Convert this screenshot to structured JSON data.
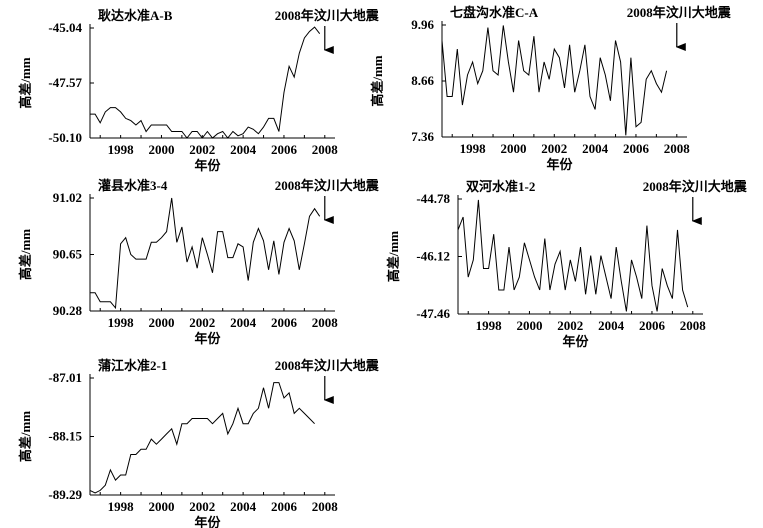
{
  "event_label": "2008年汶川大地震",
  "xlabel": "年份",
  "ylabel": "高差/mm",
  "chart_data": [
    {
      "type": "line",
      "title": "耿达水准A-B",
      "xlabel": "年份",
      "ylabel": "高差/mm",
      "xlim": [
        1996.5,
        2008.5
      ],
      "ylim": [
        -50.1,
        -45.04
      ],
      "yticks": [
        -45.04,
        -47.57,
        -50.1
      ],
      "ytick_labels": [
        "-45.04",
        "-47.57",
        "-50.10"
      ],
      "xticks": [
        1998,
        2000,
        2002,
        2004,
        2006,
        2008
      ],
      "event_year": 2008.0,
      "x": [
        1996.5,
        1996.75,
        1997.0,
        1997.25,
        1997.5,
        1997.75,
        1998.0,
        1998.25,
        1998.5,
        1998.75,
        1999.0,
        1999.25,
        1999.5,
        1999.75,
        2000.0,
        2000.25,
        2000.5,
        2000.75,
        2001.0,
        2001.25,
        2001.5,
        2001.75,
        2002.0,
        2002.25,
        2002.5,
        2002.75,
        2003.0,
        2003.25,
        2003.5,
        2003.75,
        2004.0,
        2004.25,
        2004.5,
        2004.75,
        2005.0,
        2005.25,
        2005.5,
        2005.75,
        2006.0,
        2006.25,
        2006.5,
        2006.75,
        2007.0,
        2007.25,
        2007.5,
        2007.75
      ],
      "y": [
        -49.0,
        -49.0,
        -49.4,
        -48.9,
        -48.7,
        -48.7,
        -48.9,
        -49.2,
        -49.3,
        -49.5,
        -49.3,
        -49.8,
        -49.5,
        -49.5,
        -49.5,
        -49.5,
        -49.8,
        -49.8,
        -49.8,
        -50.1,
        -49.8,
        -49.8,
        -50.1,
        -49.8,
        -50.1,
        -49.9,
        -49.8,
        -50.1,
        -49.8,
        -50.0,
        -49.9,
        -49.6,
        -49.7,
        -49.9,
        -49.6,
        -49.2,
        -49.2,
        -49.8,
        -48.0,
        -46.8,
        -47.3,
        -46.2,
        -45.5,
        -45.2,
        -45.0,
        -45.3
      ]
    },
    {
      "type": "line",
      "title": "七盘沟水准C-A",
      "xlabel": "年份",
      "ylabel": "高差/mm",
      "xlim": [
        1996.5,
        2008.5
      ],
      "ylim": [
        7.36,
        9.96
      ],
      "yticks": [
        9.96,
        8.66,
        7.36
      ],
      "ytick_labels": [
        "9.96",
        "8.66",
        "7.36"
      ],
      "xticks": [
        1998,
        2000,
        2002,
        2004,
        2006,
        2008
      ],
      "event_year": 2008.0,
      "x": [
        1996.5,
        1996.75,
        1997.0,
        1997.25,
        1997.5,
        1997.75,
        1998.0,
        1998.25,
        1998.5,
        1998.75,
        1999.0,
        1999.25,
        1999.5,
        1999.75,
        2000.0,
        2000.25,
        2000.5,
        2000.75,
        2001.0,
        2001.25,
        2001.5,
        2001.75,
        2002.0,
        2002.25,
        2002.5,
        2002.75,
        2003.0,
        2003.25,
        2003.5,
        2003.75,
        2004.0,
        2004.25,
        2004.5,
        2004.75,
        2005.0,
        2005.25,
        2005.5,
        2005.75,
        2006.0,
        2006.25,
        2006.5,
        2006.75,
        2007.0,
        2007.25,
        2007.5
      ],
      "y": [
        9.6,
        8.3,
        8.3,
        9.4,
        8.1,
        8.8,
        9.1,
        8.6,
        8.9,
        9.9,
        8.9,
        8.8,
        9.95,
        9.1,
        8.4,
        9.6,
        8.9,
        8.8,
        9.7,
        8.4,
        9.1,
        8.7,
        9.4,
        9.2,
        8.5,
        9.5,
        8.4,
        8.9,
        9.5,
        8.3,
        8.0,
        9.2,
        8.8,
        8.2,
        9.6,
        9.1,
        7.4,
        9.2,
        7.6,
        7.7,
        8.7,
        8.9,
        8.6,
        8.4,
        8.9
      ]
    },
    {
      "type": "line",
      "title": "灌县水准3-4",
      "xlabel": "年份",
      "ylabel": "高差/mm",
      "xlim": [
        1996.5,
        2008.5
      ],
      "ylim": [
        90.28,
        91.02
      ],
      "yticks": [
        91.02,
        90.65,
        90.28
      ],
      "ytick_labels": [
        "91.02",
        "90.65",
        "90.28"
      ],
      "xticks": [
        1998,
        2000,
        2002,
        2004,
        2006,
        2008
      ],
      "event_year": 2008.0,
      "x": [
        1996.5,
        1996.75,
        1997.0,
        1997.25,
        1997.5,
        1997.75,
        1998.0,
        1998.25,
        1998.5,
        1998.75,
        1999.0,
        1999.25,
        1999.5,
        1999.75,
        2000.0,
        2000.25,
        2000.5,
        2000.75,
        2001.0,
        2001.25,
        2001.5,
        2001.75,
        2002.0,
        2002.25,
        2002.5,
        2002.75,
        2003.0,
        2003.25,
        2003.5,
        2003.75,
        2004.0,
        2004.25,
        2004.5,
        2004.75,
        2005.0,
        2005.25,
        2005.5,
        2005.75,
        2006.0,
        2006.25,
        2006.5,
        2006.75,
        2007.0,
        2007.25,
        2007.5,
        2007.75
      ],
      "y": [
        90.4,
        90.4,
        90.34,
        90.34,
        90.34,
        90.3,
        90.72,
        90.76,
        90.65,
        90.62,
        90.62,
        90.62,
        90.73,
        90.73,
        90.76,
        90.8,
        91.02,
        90.73,
        90.83,
        90.6,
        90.7,
        90.56,
        90.76,
        90.65,
        90.53,
        90.8,
        90.8,
        90.63,
        90.63,
        90.72,
        90.7,
        90.48,
        90.73,
        90.82,
        90.74,
        90.55,
        90.74,
        90.52,
        90.73,
        90.82,
        90.74,
        90.55,
        90.72,
        90.9,
        90.95,
        90.9
      ]
    },
    {
      "type": "line",
      "title": "双河水准1-2",
      "xlabel": "年份",
      "ylabel": "高差/mm",
      "xlim": [
        1996.5,
        2008.5
      ],
      "ylim": [
        -47.46,
        -44.78
      ],
      "yticks": [
        -44.78,
        -46.12,
        -47.46
      ],
      "ytick_labels": [
        "-44.78",
        "-46.12",
        "-47.46"
      ],
      "xticks": [
        1998,
        2000,
        2002,
        2004,
        2006,
        2008
      ],
      "event_year": 2008.0,
      "x": [
        1996.5,
        1996.75,
        1997.0,
        1997.25,
        1997.5,
        1997.75,
        1998.0,
        1998.25,
        1998.5,
        1998.75,
        1999.0,
        1999.25,
        1999.5,
        1999.75,
        2000.0,
        2000.25,
        2000.5,
        2000.75,
        2001.0,
        2001.25,
        2001.5,
        2001.75,
        2002.0,
        2002.25,
        2002.5,
        2002.75,
        2003.0,
        2003.25,
        2003.5,
        2003.75,
        2004.0,
        2004.25,
        2004.5,
        2004.75,
        2005.0,
        2005.25,
        2005.5,
        2005.75,
        2006.0,
        2006.25,
        2006.5,
        2006.75,
        2007.0,
        2007.25,
        2007.5,
        2007.75
      ],
      "y": [
        -45.5,
        -45.2,
        -46.6,
        -46.2,
        -44.8,
        -46.4,
        -46.4,
        -45.6,
        -46.9,
        -46.9,
        -45.9,
        -46.9,
        -46.6,
        -45.8,
        -46.2,
        -46.6,
        -46.9,
        -45.7,
        -46.9,
        -46.3,
        -46.0,
        -46.9,
        -46.2,
        -46.7,
        -45.9,
        -47.0,
        -46.1,
        -47.0,
        -46.1,
        -46.6,
        -47.1,
        -45.9,
        -46.7,
        -47.4,
        -46.2,
        -46.6,
        -47.1,
        -45.4,
        -46.8,
        -47.4,
        -46.4,
        -46.8,
        -47.1,
        -45.5,
        -46.9,
        -47.3
      ]
    },
    {
      "type": "line",
      "title": "蒲江水准2-1",
      "xlabel": "年份",
      "ylabel": "高差/mm",
      "xlim": [
        1996.5,
        2008.5
      ],
      "ylim": [
        -89.29,
        -87.01
      ],
      "yticks": [
        -87.01,
        -88.15,
        -89.29
      ],
      "ytick_labels": [
        "-87.01",
        "-88.15",
        "-89.29"
      ],
      "xticks": [
        1998,
        2000,
        2002,
        2004,
        2006,
        2008
      ],
      "event_year": 2008.0,
      "x": [
        1996.5,
        1996.75,
        1997.0,
        1997.25,
        1997.5,
        1997.75,
        1998.0,
        1998.25,
        1998.5,
        1998.75,
        1999.0,
        1999.25,
        1999.5,
        1999.75,
        2000.0,
        2000.25,
        2000.5,
        2000.75,
        2001.0,
        2001.25,
        2001.5,
        2001.75,
        2002.0,
        2002.25,
        2002.5,
        2002.75,
        2003.0,
        2003.25,
        2003.5,
        2003.75,
        2004.0,
        2004.25,
        2004.5,
        2004.75,
        2005.0,
        2005.25,
        2005.5,
        2005.75,
        2006.0,
        2006.25,
        2006.5,
        2006.75,
        2007.0,
        2007.25,
        2007.5
      ],
      "y": [
        -89.2,
        -89.25,
        -89.2,
        -89.1,
        -88.8,
        -89.0,
        -88.9,
        -88.9,
        -88.5,
        -88.5,
        -88.4,
        -88.4,
        -88.2,
        -88.3,
        -88.2,
        -88.1,
        -88.0,
        -88.3,
        -87.9,
        -87.9,
        -87.8,
        -87.8,
        -87.8,
        -87.8,
        -87.9,
        -87.8,
        -87.7,
        -88.1,
        -87.9,
        -87.6,
        -87.9,
        -87.9,
        -87.7,
        -87.6,
        -87.2,
        -87.6,
        -87.1,
        -87.1,
        -87.4,
        -87.3,
        -87.7,
        -87.6,
        -87.7,
        -87.8,
        -87.9
      ]
    }
  ]
}
